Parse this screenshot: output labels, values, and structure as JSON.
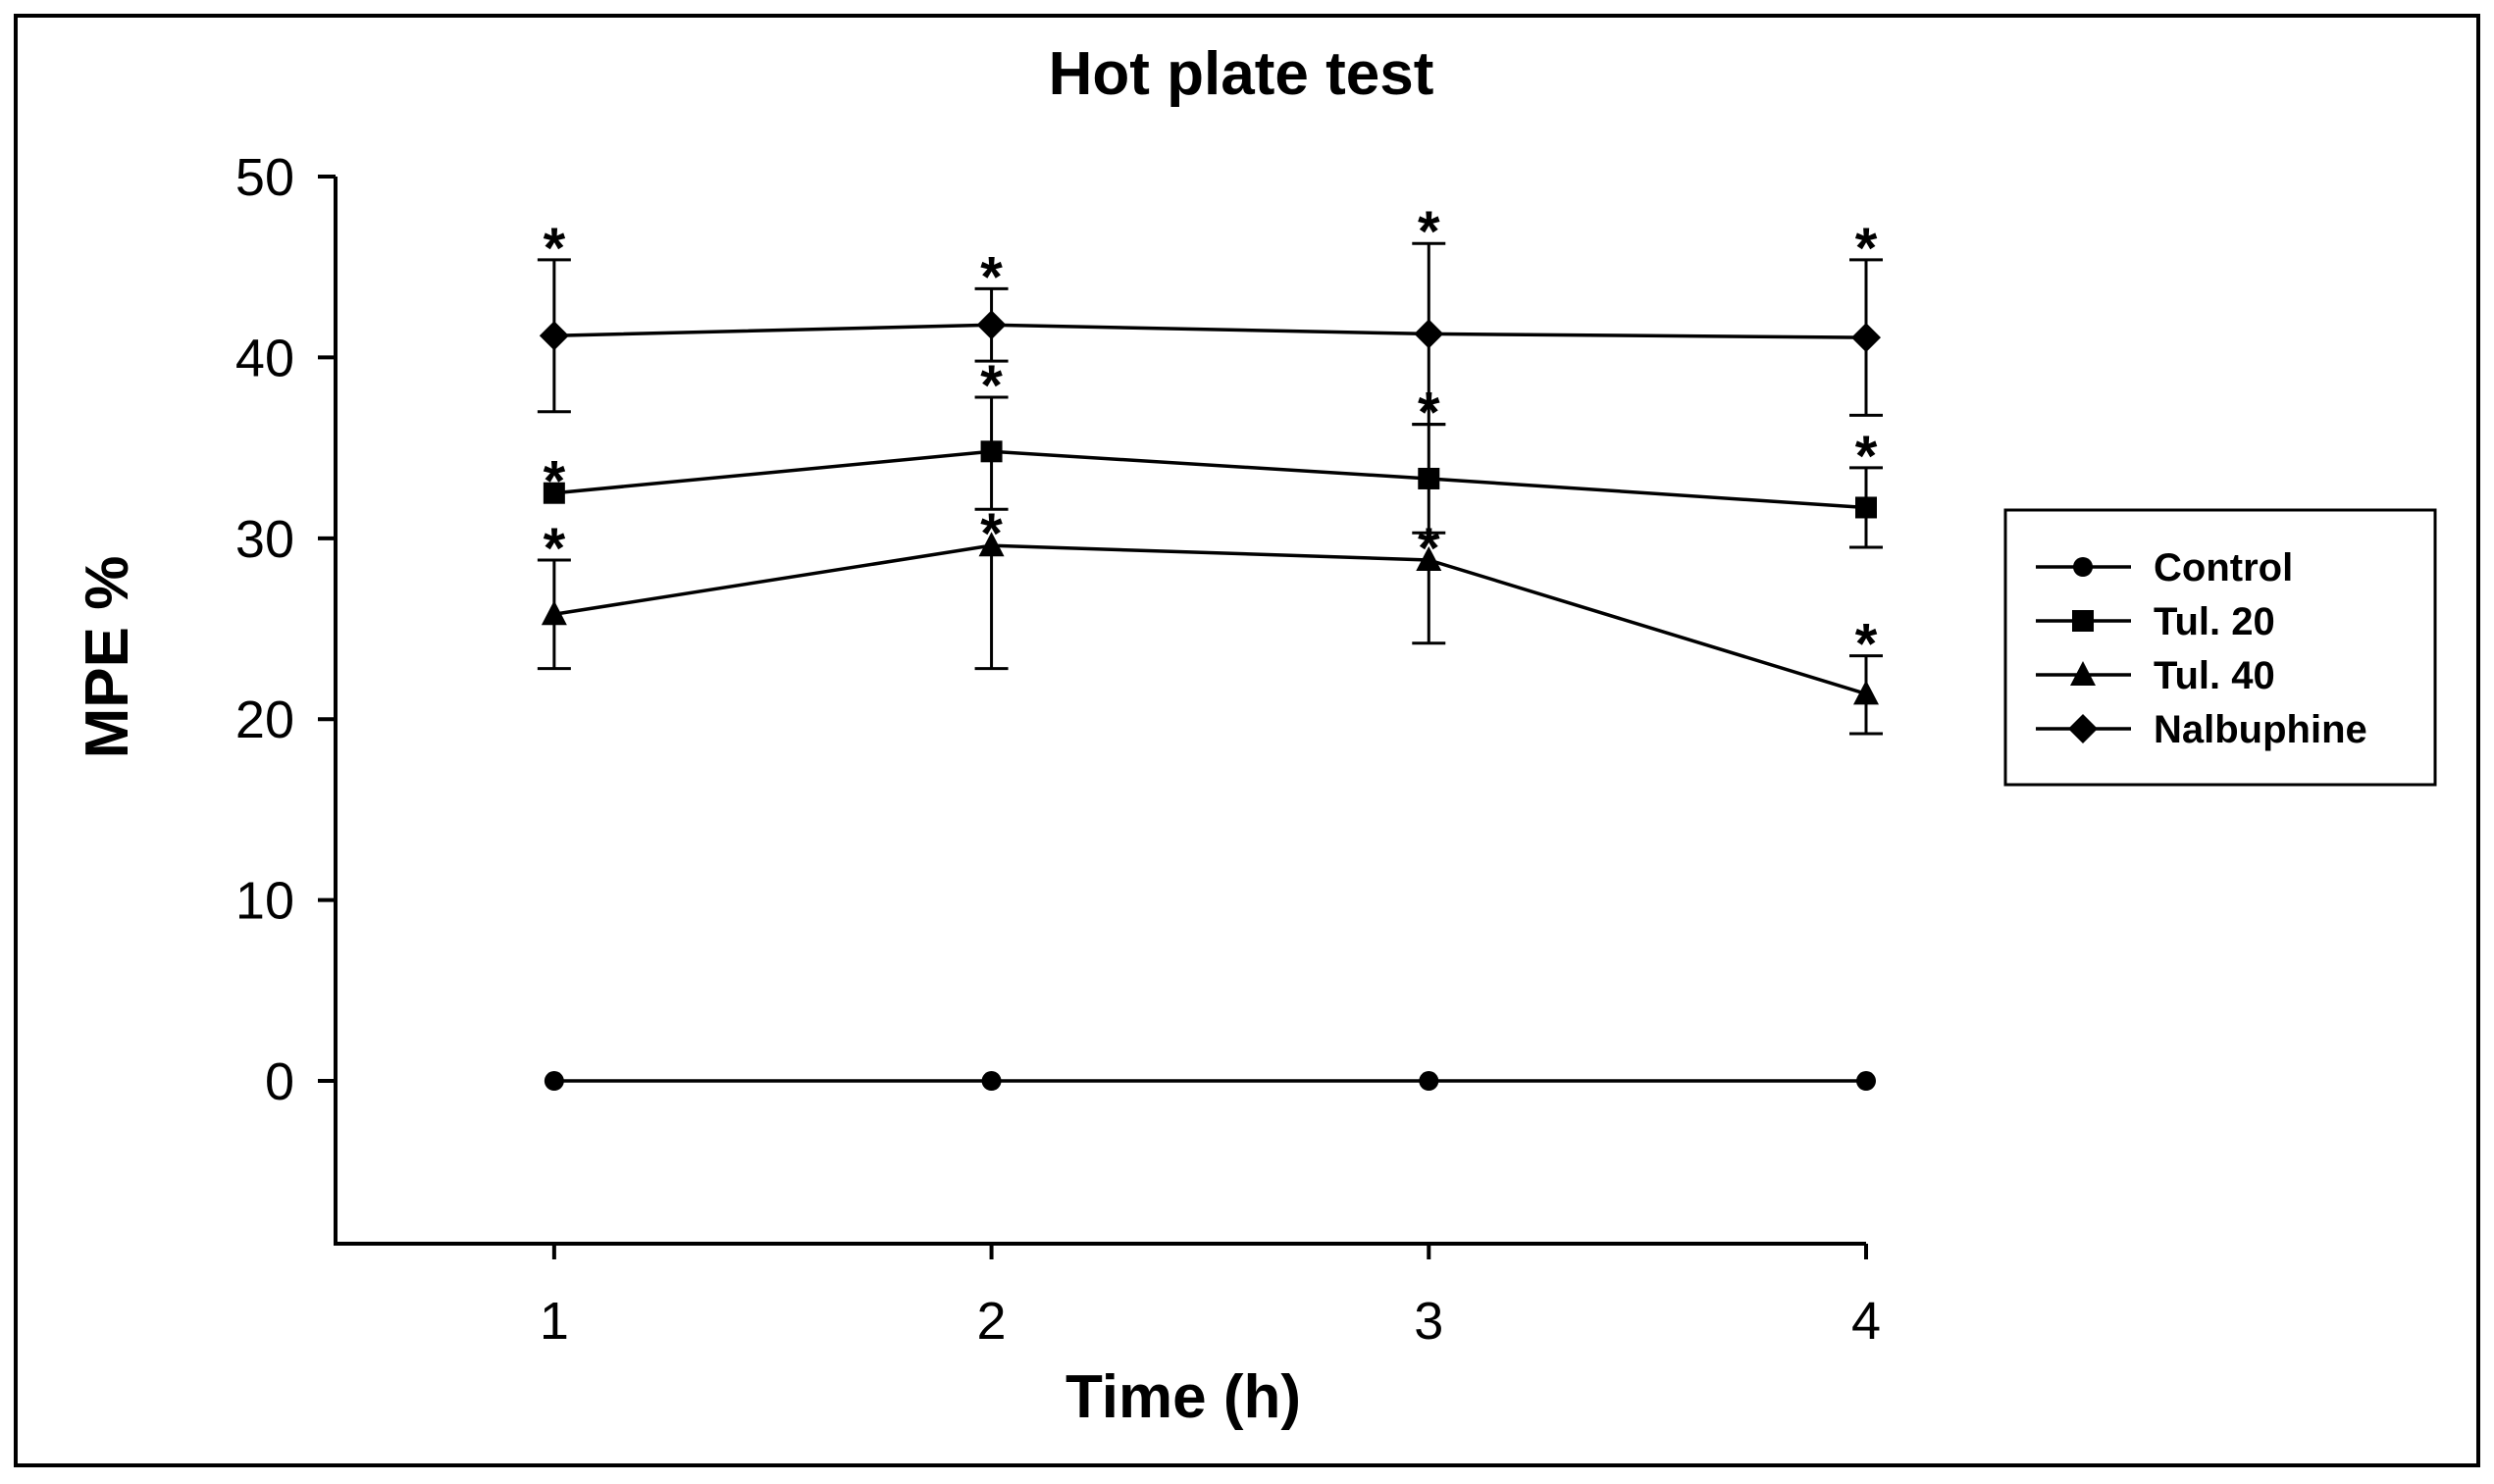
{
  "chart_data": {
    "type": "line",
    "title": "Hot plate test",
    "xlabel": "Time (h)",
    "ylabel": "MPE %",
    "x": [
      1,
      2,
      3,
      4
    ],
    "x_tick_labels": [
      "1",
      "2",
      "3",
      "4"
    ],
    "y_ticks": [
      0,
      10,
      20,
      30,
      40,
      50
    ],
    "y_tick_labels": [
      "0",
      "10",
      "20",
      "30",
      "40",
      "50"
    ],
    "ylim": [
      -9,
      50
    ],
    "xlim": [
      0.5,
      4.0
    ],
    "legend_position": "right",
    "series": [
      {
        "name": "Control",
        "marker": "circle",
        "values": [
          0,
          0,
          0,
          0
        ],
        "error_upper": [
          null,
          null,
          null,
          null
        ],
        "error_lower": [
          null,
          null,
          null,
          null
        ],
        "significance": [
          "",
          "",
          "",
          ""
        ]
      },
      {
        "name": "Tul. 20",
        "marker": "square",
        "values": [
          32.5,
          34.8,
          33.3,
          31.7
        ],
        "error_upper": [
          null,
          37.8,
          36.3,
          33.9
        ],
        "error_lower": [
          null,
          31.6,
          30.3,
          29.5
        ],
        "significance": [
          "*",
          "*",
          "*",
          "*"
        ]
      },
      {
        "name": "Tul. 40",
        "marker": "triangle",
        "values": [
          25.8,
          29.6,
          28.8,
          21.4
        ],
        "error_upper": [
          28.8,
          null,
          null,
          23.5
        ],
        "error_lower": [
          22.8,
          22.8,
          24.2,
          19.2
        ],
        "significance": [
          "*",
          "*",
          "*",
          "*"
        ]
      },
      {
        "name": "Nalbuphine",
        "marker": "diamond",
        "values": [
          41.2,
          41.8,
          41.3,
          41.1
        ],
        "error_upper": [
          45.4,
          43.8,
          46.3,
          45.4
        ],
        "error_lower": [
          37.0,
          39.8,
          36.3,
          36.8
        ],
        "significance": [
          "*",
          "*",
          "*",
          "*"
        ]
      }
    ]
  }
}
